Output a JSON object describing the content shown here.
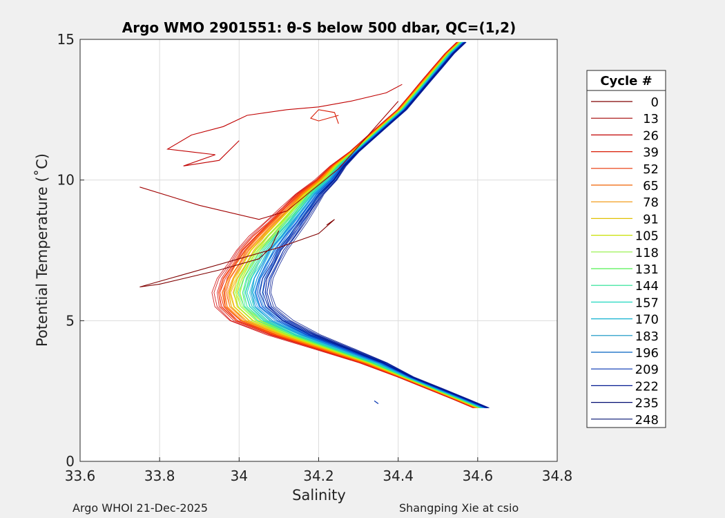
{
  "chart_data": {
    "type": "line",
    "title": "Argo WMO 2901551: θ-S below 500 dbar,  QC=(1,2)",
    "xlabel": "Salinity",
    "ylabel": "Potential Temperature (˚C)",
    "xlim": [
      33.6,
      34.8
    ],
    "ylim": [
      0,
      15
    ],
    "xticks": [
      "33.6",
      "33.8",
      "34",
      "34.2",
      "34.4",
      "34.6",
      "34.8"
    ],
    "yticks": [
      "0",
      "5",
      "10",
      "15"
    ],
    "grid": true,
    "legend": {
      "title": "Cycle #",
      "placement": "outside-right",
      "entries": [
        "0",
        "13",
        "26",
        "39",
        "52",
        "65",
        "78",
        "91",
        "105",
        "118",
        "131",
        "144",
        "157",
        "170",
        "183",
        "196",
        "209",
        "222",
        "235",
        "248"
      ],
      "colors": [
        "#800000",
        "#a00000",
        "#c00000",
        "#d81800",
        "#e83000",
        "#f06000",
        "#f09000",
        "#e0c000",
        "#c8e000",
        "#90f040",
        "#50f050",
        "#20e090",
        "#20d8c0",
        "#10b0d0",
        "#0890c0",
        "#0060c0",
        "#0030b0",
        "#001890",
        "#000c70",
        "#001070"
      ]
    },
    "series": [
      {
        "name": "0",
        "x": [
          34.22,
          34.24,
          34.2,
          34.1,
          34.0,
          33.85,
          33.75,
          33.8,
          33.95,
          34.05,
          34.08,
          34.1
        ],
        "y": [
          8.4,
          8.6,
          8.1,
          7.6,
          7.2,
          6.6,
          6.2,
          6.3,
          6.8,
          7.2,
          7.6,
          8.2
        ]
      },
      {
        "name": "13",
        "x": [
          33.75,
          33.9,
          34.05,
          34.12,
          34.18,
          34.25,
          34.4
        ],
        "y": [
          9.75,
          9.1,
          8.6,
          8.9,
          9.6,
          10.4,
          12.8
        ]
      },
      {
        "name": "26",
        "x": [
          34.41,
          34.37,
          34.28,
          34.2,
          34.12,
          34.02,
          33.96,
          33.88,
          33.82,
          33.88,
          33.94,
          33.86,
          33.95,
          34.0
        ],
        "y": [
          13.4,
          13.1,
          12.8,
          12.6,
          12.5,
          12.3,
          11.9,
          11.6,
          11.1,
          11.0,
          10.9,
          10.5,
          10.7,
          11.4
        ]
      },
      {
        "name": "39",
        "x": [
          34.25,
          34.24,
          34.2,
          34.18,
          34.2,
          34.25
        ],
        "y": [
          12.0,
          12.4,
          12.5,
          12.2,
          12.1,
          12.3
        ]
      }
    ],
    "envelope_note": "",
    "band_colors": [
      "#d00000",
      "#ff4000",
      "#ff9000",
      "#e0e000",
      "#80ff40",
      "#20e0a0",
      "#20c0e0",
      "#1080e0",
      "#0040d0",
      "#001890"
    ],
    "band_offsets": [
      -0.07,
      -0.055,
      -0.04,
      -0.025,
      -0.01,
      0.005,
      0.02,
      0.035,
      0.05,
      0.062
    ],
    "backbone": {
      "y": [
        1.9,
        2.2,
        2.6,
        3.0,
        3.5,
        4.0,
        4.5,
        5.0,
        5.5,
        6.0,
        6.5,
        7.0,
        7.5,
        8.0,
        8.5,
        9.0,
        9.5,
        10.0,
        10.5,
        11.0,
        11.5,
        12.0,
        12.5,
        13.0,
        13.5,
        14.0,
        14.5,
        14.9
      ],
      "x": [
        34.61,
        34.56,
        34.49,
        34.42,
        34.34,
        34.24,
        34.14,
        34.06,
        34.02,
        34.01,
        34.02,
        34.04,
        34.06,
        34.09,
        34.12,
        34.15,
        34.18,
        34.22,
        34.25,
        34.29,
        34.33,
        34.37,
        34.41,
        34.44,
        34.47,
        34.5,
        34.53,
        34.56
      ]
    },
    "stray": {
      "x": [
        34.34,
        34.35
      ],
      "y": [
        2.15,
        2.05
      ]
    }
  },
  "footer": {
    "left": "Argo WHOI 21-Dec-2025",
    "right": "Shangping Xie at csio"
  }
}
